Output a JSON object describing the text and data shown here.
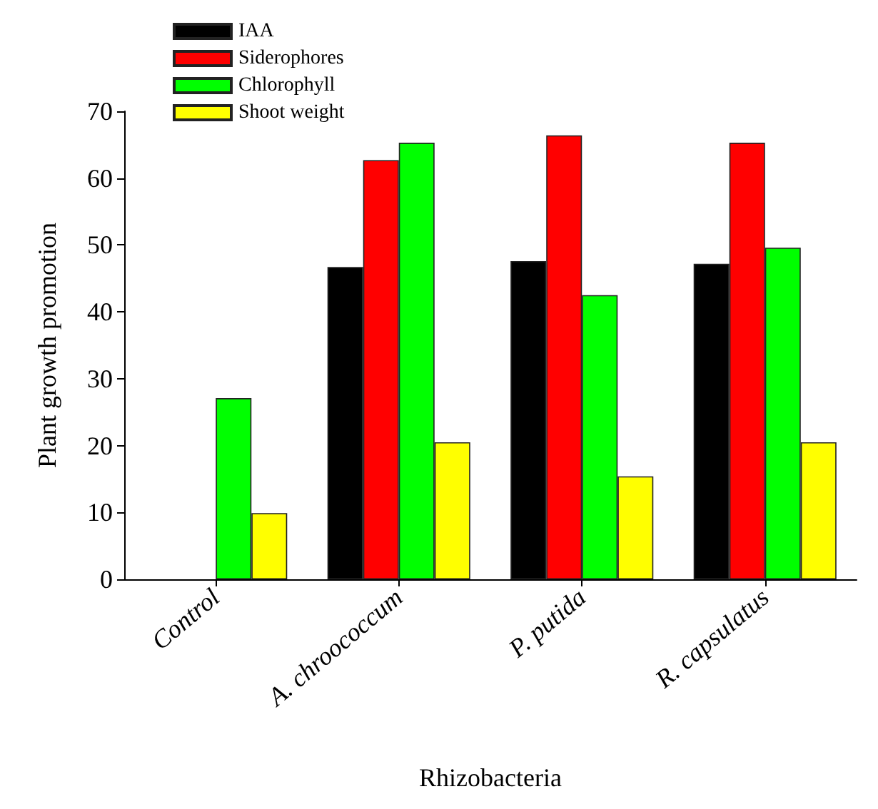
{
  "chart_data": {
    "type": "bar",
    "xlabel": "Rhizobacteria",
    "ylabel": "Plant growth promotion",
    "categories": [
      "Control",
      "A. chroococcum",
      "P. putida",
      "R. capsulatus"
    ],
    "series": [
      {
        "name": "IAA",
        "color": "#000000",
        "values": [
          0,
          46.7,
          47.6,
          47.2
        ]
      },
      {
        "name": "Siderophores",
        "color": "#ff0000",
        "values": [
          0,
          62.7,
          66.4,
          65.3
        ]
      },
      {
        "name": "Chlorophyll",
        "color": "#00ff00",
        "values": [
          27.1,
          65.3,
          42.5,
          49.6
        ]
      },
      {
        "name": "Shoot weight",
        "color": "#ffff00",
        "values": [
          9.9,
          20.5,
          15.4,
          20.5
        ]
      }
    ],
    "ylim": [
      0,
      70
    ],
    "yticks": [
      0,
      10,
      20,
      30,
      40,
      50,
      60,
      70
    ],
    "grid": false,
    "legend": "top left"
  }
}
